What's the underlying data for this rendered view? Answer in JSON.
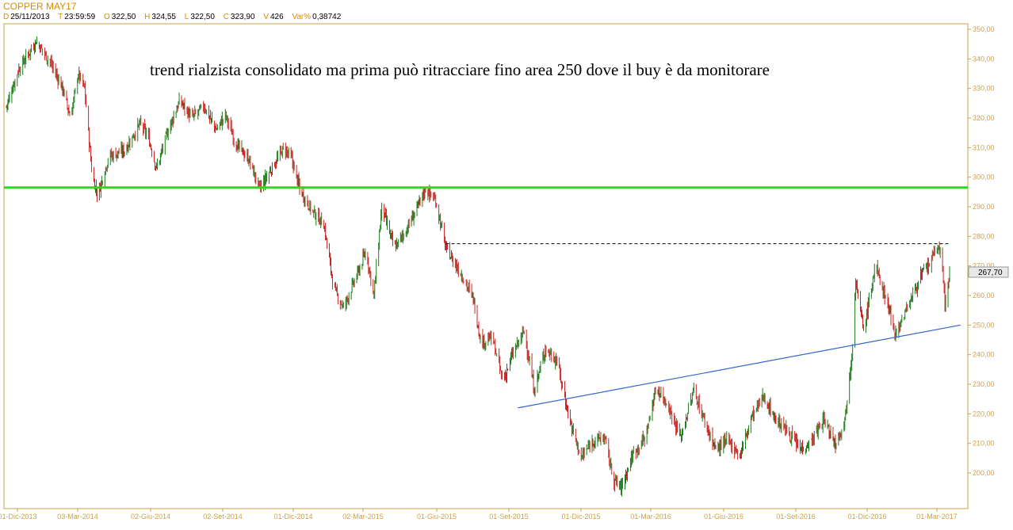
{
  "header": {
    "title": "COPPER MAY17",
    "fields": [
      {
        "key": "D",
        "value": "25/11/2013"
      },
      {
        "key": "T",
        "value": "23:59:59"
      },
      {
        "key": "O",
        "value": "322,50"
      },
      {
        "key": "H",
        "value": "324,55"
      },
      {
        "key": "L",
        "value": "322,50"
      },
      {
        "key": "C",
        "value": "323,90"
      },
      {
        "key": "V",
        "value": "426"
      },
      {
        "key": "Var%",
        "value": "0,38742"
      }
    ]
  },
  "chart_data": {
    "type": "line",
    "title": "COPPER MAY17",
    "annotation": "trend rialzista consolidato ma prima può ritracciare fino area 250 dove il buy è da monitorare",
    "last_price_label": "267,70",
    "ylim": [
      190,
      352
    ],
    "yticks": [
      "350,00",
      "340,00",
      "330,00",
      "320,00",
      "310,00",
      "300,00",
      "290,00",
      "280,00",
      "270,00",
      "260,00",
      "250,00",
      "240,00",
      "230,00",
      "220,00",
      "210,00",
      "200,00"
    ],
    "yvalues": [
      350,
      340,
      330,
      320,
      310,
      300,
      290,
      280,
      270,
      260,
      250,
      240,
      230,
      220,
      210,
      200
    ],
    "xlabels": [
      "01-Dic-2013",
      "03-Mar-2014",
      "02-Giu-2014",
      "02-Set-2014",
      "01-Dic-2014",
      "02-Mar-2015",
      "01-Giu-2015",
      "01-Set-2015",
      "01-Dic-2015",
      "01-Mar-2016",
      "01-Giu-2016",
      "01-Set-2016",
      "01-Dic-2016",
      "01-Mar-2017"
    ],
    "xlim": [
      "2013-11-25",
      "2017-03-15"
    ],
    "series": [
      {
        "values": [
          [
            "2013-11-25",
            323.9
          ],
          [
            "2013-12-10",
            336
          ],
          [
            "2014-01-02",
            346
          ],
          [
            "2014-01-20",
            339
          ],
          [
            "2014-02-05",
            330
          ],
          [
            "2014-02-15",
            320
          ],
          [
            "2014-02-25",
            335
          ],
          [
            "2014-03-05",
            330
          ],
          [
            "2014-03-15",
            300
          ],
          [
            "2014-03-22",
            294
          ],
          [
            "2014-04-05",
            307
          ],
          [
            "2014-04-25",
            309
          ],
          [
            "2014-05-15",
            318
          ],
          [
            "2014-05-25",
            314
          ],
          [
            "2014-06-05",
            303
          ],
          [
            "2014-06-20",
            316
          ],
          [
            "2014-07-05",
            326
          ],
          [
            "2014-07-20",
            320
          ],
          [
            "2014-08-05",
            324
          ],
          [
            "2014-08-20",
            316
          ],
          [
            "2014-09-01",
            321
          ],
          [
            "2014-09-15",
            311
          ],
          [
            "2014-10-01",
            306
          ],
          [
            "2014-10-15",
            296
          ],
          [
            "2014-10-28",
            302
          ],
          [
            "2014-11-15",
            310
          ],
          [
            "2014-11-25",
            306
          ],
          [
            "2014-12-05",
            296
          ],
          [
            "2014-12-20",
            289
          ],
          [
            "2015-01-05",
            284
          ],
          [
            "2015-01-18",
            262
          ],
          [
            "2015-01-30",
            256
          ],
          [
            "2015-02-15",
            266
          ],
          [
            "2015-02-28",
            275
          ],
          [
            "2015-03-10",
            260
          ],
          [
            "2015-03-20",
            290
          ],
          [
            "2015-04-05",
            276
          ],
          [
            "2015-04-20",
            282
          ],
          [
            "2015-05-05",
            290
          ],
          [
            "2015-05-15",
            296
          ],
          [
            "2015-05-28",
            292
          ],
          [
            "2015-06-10",
            276
          ],
          [
            "2015-06-30",
            267
          ],
          [
            "2015-07-15",
            259
          ],
          [
            "2015-07-25",
            244
          ],
          [
            "2015-08-08",
            246
          ],
          [
            "2015-08-22",
            231
          ],
          [
            "2015-09-03",
            240
          ],
          [
            "2015-09-18",
            248
          ],
          [
            "2015-10-01",
            228
          ],
          [
            "2015-10-15",
            242
          ],
          [
            "2015-10-30",
            238
          ],
          [
            "2015-11-15",
            218
          ],
          [
            "2015-11-30",
            205
          ],
          [
            "2015-12-15",
            211
          ],
          [
            "2015-12-30",
            212
          ],
          [
            "2016-01-10",
            198
          ],
          [
            "2016-01-20",
            195
          ],
          [
            "2016-02-05",
            207
          ],
          [
            "2016-02-20",
            212
          ],
          [
            "2016-03-05",
            229
          ],
          [
            "2016-03-20",
            223
          ],
          [
            "2016-04-05",
            212
          ],
          [
            "2016-04-22",
            228
          ],
          [
            "2016-05-05",
            218
          ],
          [
            "2016-05-20",
            208
          ],
          [
            "2016-06-05",
            211
          ],
          [
            "2016-06-20",
            206
          ],
          [
            "2016-07-05",
            219
          ],
          [
            "2016-07-20",
            226
          ],
          [
            "2016-08-05",
            218
          ],
          [
            "2016-08-20",
            214
          ],
          [
            "2016-09-05",
            208
          ],
          [
            "2016-09-20",
            211
          ],
          [
            "2016-10-05",
            218
          ],
          [
            "2016-10-20",
            210
          ],
          [
            "2016-11-01",
            218
          ],
          [
            "2016-11-10",
            240
          ],
          [
            "2016-11-15",
            265
          ],
          [
            "2016-11-25",
            248
          ],
          [
            "2016-12-10",
            270
          ],
          [
            "2016-12-25",
            258
          ],
          [
            "2017-01-05",
            247
          ],
          [
            "2017-01-20",
            256
          ],
          [
            "2017-02-05",
            266
          ],
          [
            "2017-02-18",
            271
          ],
          [
            "2017-02-28",
            277
          ],
          [
            "2017-03-05",
            272
          ],
          [
            "2017-03-09",
            257
          ],
          [
            "2017-03-15",
            267.7
          ]
        ]
      }
    ],
    "hlines": [
      {
        "y": 296.5,
        "color": "#22dd22",
        "style": "solid"
      },
      {
        "y": 277.5,
        "from": "2015-06-10",
        "to": "2017-03-15",
        "color": "#000000",
        "style": "dashed"
      }
    ],
    "trendline": {
      "from": [
        "2015-09-10",
        222
      ],
      "to": [
        "2017-03-29",
        250
      ],
      "color": "#3366cc"
    },
    "up_color": "#1a7a1a",
    "down_color": "#cc2222",
    "grid": false
  }
}
